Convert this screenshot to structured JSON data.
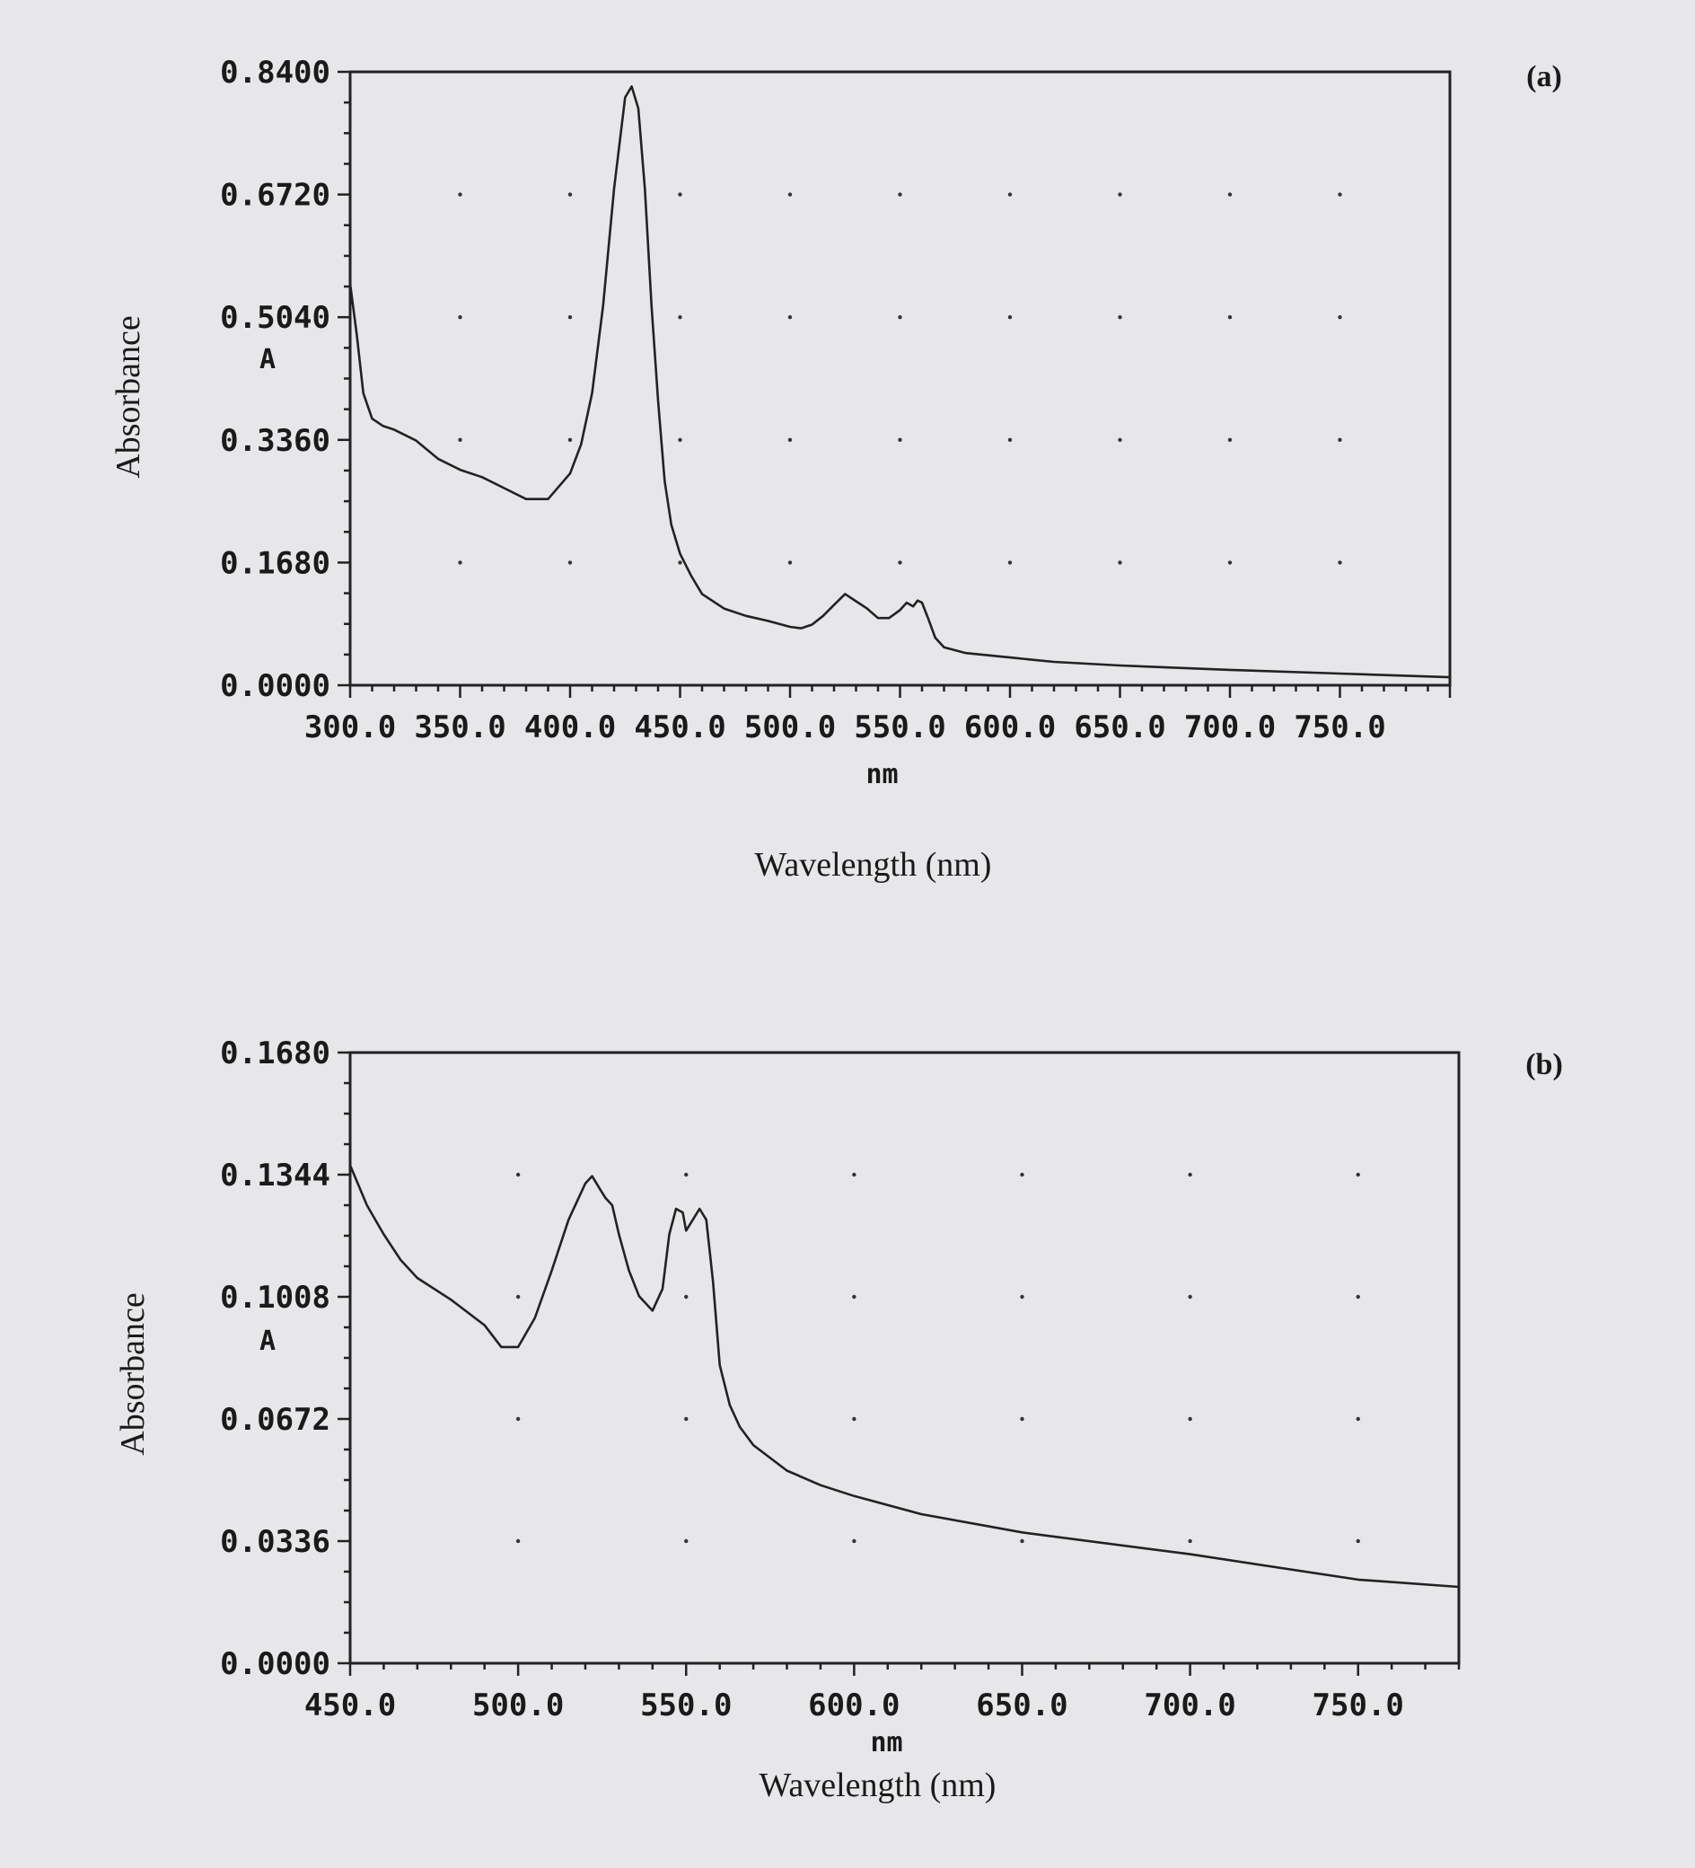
{
  "chart_data": [
    {
      "type": "line",
      "panel_label": "(a)",
      "title": "",
      "xlabel": "Wavelength (nm)",
      "x_unit_label": "nm",
      "ylabel": "Absorbance",
      "y_unit_label": "A",
      "xlim": [
        300,
        800
      ],
      "ylim": [
        0,
        0.84
      ],
      "x_ticks": [
        300,
        350,
        400,
        450,
        500,
        550,
        600,
        650,
        700,
        750
      ],
      "x_tick_labels": [
        "300.0",
        "350.0",
        "400.0",
        "450.0",
        "500.0",
        "550.0",
        "600.0",
        "650.0",
        "700.0",
        "750.0"
      ],
      "y_ticks": [
        0,
        0.168,
        0.336,
        0.504,
        0.672,
        0.84
      ],
      "y_tick_labels": [
        "0.0000",
        "0.1680",
        "0.3360",
        "0.5040",
        "0.6720",
        "0.8400"
      ],
      "grid": "dotted",
      "x": [
        300,
        303,
        306,
        310,
        315,
        320,
        330,
        340,
        350,
        360,
        370,
        380,
        390,
        400,
        405,
        410,
        415,
        420,
        425,
        428,
        431,
        434,
        437,
        440,
        443,
        446,
        450,
        455,
        460,
        470,
        480,
        490,
        500,
        505,
        510,
        515,
        520,
        525,
        530,
        535,
        540,
        545,
        550,
        553,
        556,
        558,
        560,
        563,
        566,
        570,
        580,
        600,
        620,
        650,
        700,
        750,
        800
      ],
      "series": [
        {
          "values": [
            0.55,
            0.48,
            0.4,
            0.365,
            0.355,
            0.35,
            0.335,
            0.31,
            0.295,
            0.285,
            0.27,
            0.255,
            0.255,
            0.29,
            0.33,
            0.4,
            0.52,
            0.68,
            0.805,
            0.82,
            0.79,
            0.68,
            0.52,
            0.39,
            0.28,
            0.22,
            0.18,
            0.15,
            0.125,
            0.105,
            0.095,
            0.088,
            0.08,
            0.078,
            0.083,
            0.095,
            0.11,
            0.125,
            0.115,
            0.105,
            0.092,
            0.092,
            0.103,
            0.113,
            0.108,
            0.116,
            0.113,
            0.09,
            0.065,
            0.052,
            0.044,
            0.038,
            0.032,
            0.027,
            0.021,
            0.016,
            0.011
          ]
        }
      ]
    },
    {
      "type": "line",
      "panel_label": "(b)",
      "title": "",
      "xlabel": "Wavelength (nm)",
      "x_unit_label": "nm",
      "ylabel": "Absorbance",
      "y_unit_label": "A",
      "xlim": [
        450,
        780
      ],
      "ylim": [
        0,
        0.168
      ],
      "x_ticks": [
        450,
        500,
        550,
        600,
        650,
        700,
        750
      ],
      "x_tick_labels": [
        "450.0",
        "500.0",
        "550.0",
        "600.0",
        "650.0",
        "700.0",
        "750.0"
      ],
      "y_ticks": [
        0,
        0.0336,
        0.0672,
        0.1008,
        0.1344,
        0.168
      ],
      "y_tick_labels": [
        "0.0000",
        "0.0336",
        "0.0672",
        "0.1008",
        "0.1344",
        "0.1680"
      ],
      "grid": "dotted",
      "x": [
        450,
        455,
        460,
        465,
        470,
        480,
        490,
        495,
        500,
        505,
        510,
        515,
        520,
        522,
        524,
        526,
        528,
        530,
        533,
        536,
        540,
        543,
        545,
        547,
        549,
        550,
        552,
        554,
        556,
        558,
        560,
        563,
        566,
        570,
        580,
        590,
        600,
        620,
        650,
        700,
        750,
        780
      ],
      "series": [
        {
          "values": [
            0.137,
            0.126,
            0.118,
            0.111,
            0.106,
            0.1,
            0.093,
            0.087,
            0.087,
            0.095,
            0.108,
            0.122,
            0.132,
            0.134,
            0.131,
            0.128,
            0.126,
            0.118,
            0.108,
            0.101,
            0.097,
            0.103,
            0.118,
            0.125,
            0.124,
            0.119,
            0.122,
            0.125,
            0.122,
            0.105,
            0.082,
            0.071,
            0.065,
            0.06,
            0.053,
            0.049,
            0.046,
            0.041,
            0.036,
            0.03,
            0.023,
            0.021
          ]
        }
      ]
    }
  ]
}
